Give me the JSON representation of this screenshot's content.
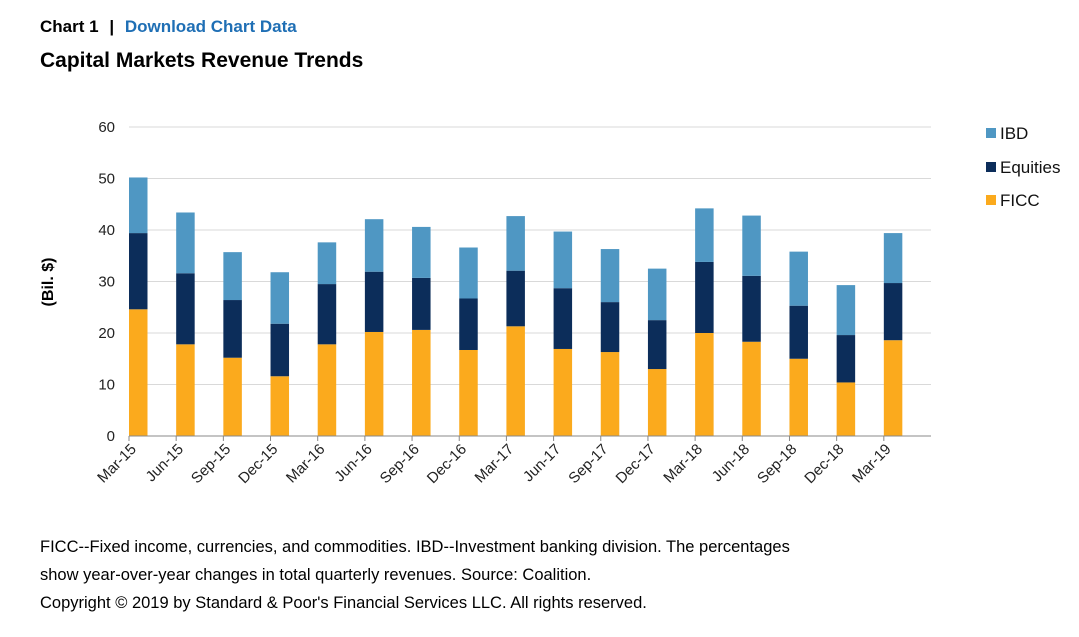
{
  "header": {
    "chart_number": "Chart 1",
    "separator": "|",
    "download_link": "Download Chart Data"
  },
  "footnote": {
    "line1": "FICC--Fixed income, currencies, and commodities. IBD--Investment banking division. The percentages",
    "line2": "show year-over-year changes in total quarterly revenues. Source: Coalition.",
    "line3": "Copyright © 2019 by Standard & Poor's Financial Services LLC. All rights reserved."
  },
  "colors": {
    "FICC": "#fbaa1d",
    "Equities": "#0c2d5a",
    "IBD": "#4f97c3",
    "grid": "#d9d9d9",
    "link": "#1f6fb5"
  },
  "chart_data": {
    "type": "bar",
    "stacked": true,
    "title": "Capital Markets Revenue Trends",
    "xlabel": "",
    "ylabel": "(Bil. $)",
    "ylim": [
      0,
      60
    ],
    "yticks": [
      0,
      10,
      20,
      30,
      40,
      50,
      60
    ],
    "grid": true,
    "legend_position": "right",
    "categories": [
      "Mar-15",
      "Jun-15",
      "Sep-15",
      "Dec-15",
      "Mar-16",
      "Jun-16",
      "Sep-16",
      "Dec-16",
      "Mar-17",
      "Jun-17",
      "Sep-17",
      "Dec-17",
      "Mar-18",
      "Jun-18",
      "Sep-18",
      "Dec-18",
      "Mar-19"
    ],
    "series": [
      {
        "name": "FICC",
        "values": [
          24.6,
          17.8,
          15.2,
          11.6,
          17.8,
          20.2,
          20.6,
          16.7,
          21.3,
          16.9,
          16.3,
          13.0,
          20.0,
          18.3,
          15.0,
          10.4,
          18.6
        ]
      },
      {
        "name": "Equities",
        "values": [
          14.8,
          13.8,
          11.2,
          10.2,
          11.7,
          11.7,
          10.1,
          10.0,
          10.8,
          11.8,
          9.7,
          9.5,
          13.8,
          12.8,
          10.3,
          9.2,
          11.1
        ]
      },
      {
        "name": "IBD",
        "values": [
          10.8,
          11.8,
          9.3,
          10.0,
          8.1,
          10.2,
          9.9,
          9.9,
          10.6,
          11.0,
          10.3,
          10.0,
          10.4,
          11.7,
          10.5,
          9.7,
          9.7
        ]
      }
    ],
    "legend_order": [
      "IBD",
      "Equities",
      "FICC"
    ]
  }
}
